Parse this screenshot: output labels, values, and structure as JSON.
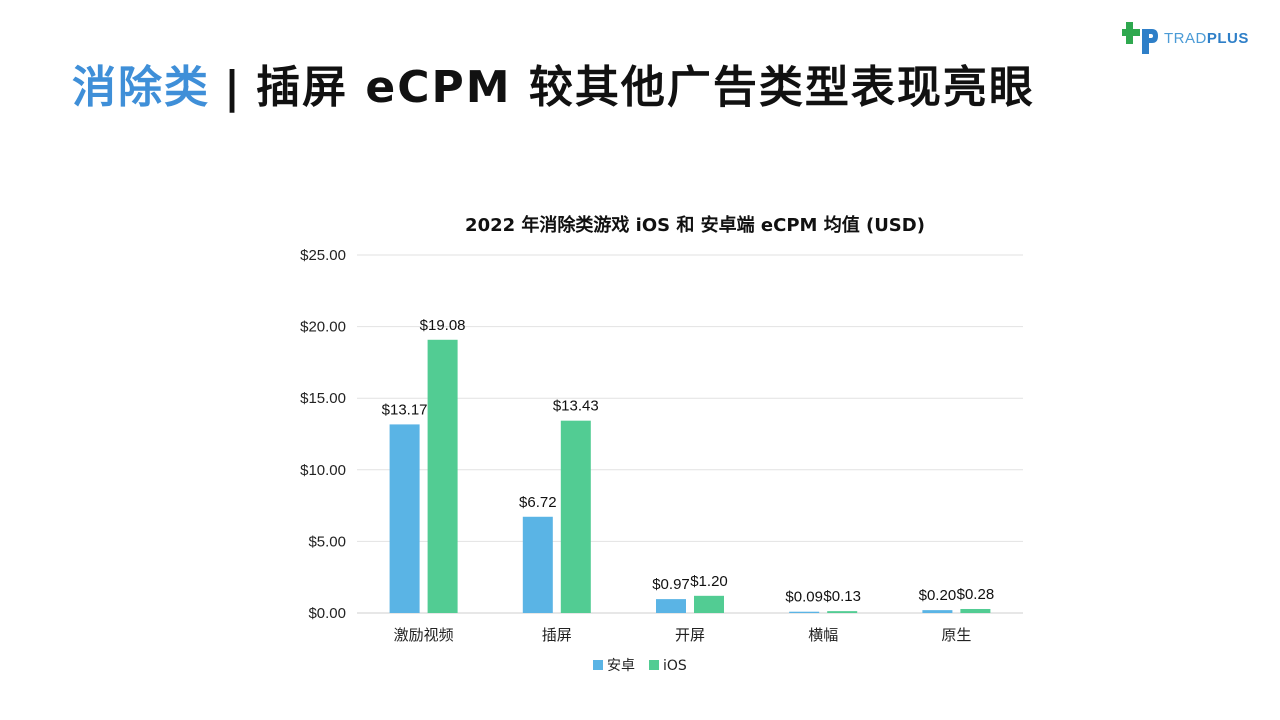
{
  "slide": {
    "headline_accent": "消除类",
    "headline_separator": "|",
    "headline_rest": "插屏 eCPM 较其他广告类型表现亮眼",
    "logo": {
      "icon": "tradplus-logo-icon",
      "text_light": "TRAD",
      "text_bold": "PLUS",
      "colors": {
        "green": "#2fa84f",
        "blue": "#2e7fc8"
      }
    }
  },
  "chart_data": {
    "type": "bar",
    "title": "2022 年消除类游戏 iOS 和 安卓端 eCPM 均值 (USD)",
    "categories": [
      "激励视频",
      "插屏",
      "开屏",
      "横幅",
      "原生"
    ],
    "series": [
      {
        "name": "安卓",
        "color": "#5ab4e5",
        "values": [
          13.17,
          6.72,
          0.97,
          0.09,
          0.2
        ]
      },
      {
        "name": "iOS",
        "color": "#52cc93",
        "values": [
          19.08,
          13.43,
          1.2,
          0.13,
          0.28
        ]
      }
    ],
    "data_labels": [
      [
        "$13.17",
        "$6.72",
        "$0.97",
        "$0.09",
        "$0.20"
      ],
      [
        "$19.08",
        "$13.43",
        "$1.20",
        "$0.13",
        "$0.28"
      ]
    ],
    "ylim": [
      0,
      25
    ],
    "y_ticks": [
      0,
      5,
      10,
      15,
      20,
      25
    ],
    "y_tick_labels": [
      "$0.00",
      "$5.00",
      "$10.00",
      "$15.00",
      "$20.00",
      "$25.00"
    ],
    "grid": true,
    "legend_position": "bottom"
  }
}
